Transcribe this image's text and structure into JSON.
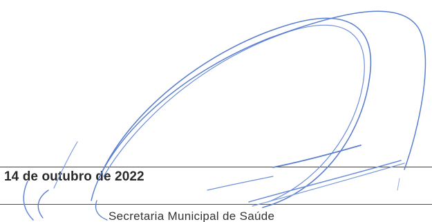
{
  "document": {
    "date_line": "14 de outubro de 2022",
    "department": "Secretaria Municipal de Saúde"
  },
  "signature": {
    "ink_color": "#5b7fd0"
  }
}
